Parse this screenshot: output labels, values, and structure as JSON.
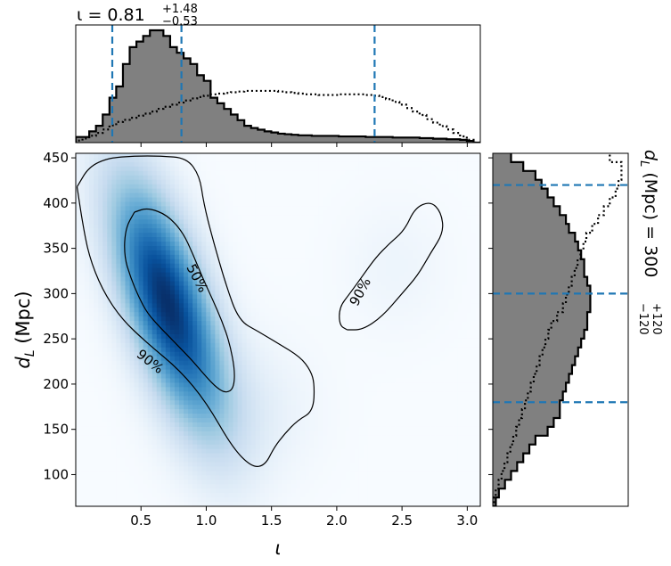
{
  "chart_data": {
    "type": "heatmap",
    "layout": "corner plot with marginal histograms",
    "title_top": {
      "base": "ι = 0.81",
      "sup": "+1.48",
      "sub": "−0.53"
    },
    "title_right": {
      "base": "d_L (Mpc) = 300",
      "sup": "+120",
      "sub": "−120"
    },
    "xlabel": "ι",
    "ylabel": "d_L (Mpc)",
    "xlim": [
      0.0,
      3.1
    ],
    "ylim": [
      65,
      455
    ],
    "xticks": [
      0.5,
      1.0,
      1.5,
      2.0,
      2.5,
      3.0
    ],
    "xtick_labels": [
      "0.5",
      "1.0",
      "1.5",
      "2.0",
      "2.5",
      "3.0"
    ],
    "yticks": [
      100,
      150,
      200,
      250,
      300,
      350,
      400,
      450
    ],
    "ytick_labels": [
      "100",
      "150",
      "200",
      "250",
      "300",
      "350",
      "400",
      "450"
    ],
    "colormap": "Blues",
    "density_peak": {
      "iota": 0.7,
      "dL": 290
    },
    "contours": [
      {
        "label": "50%",
        "label_pos": {
          "iota": 0.93,
          "dL": 317
        },
        "label_angle": 62,
        "path": [
          [
            0.45,
            390
          ],
          [
            0.38,
            372
          ],
          [
            0.37,
            342
          ],
          [
            0.42,
            318
          ],
          [
            0.48,
            297
          ],
          [
            0.55,
            278
          ],
          [
            0.65,
            262
          ],
          [
            0.78,
            243
          ],
          [
            0.9,
            225
          ],
          [
            1.0,
            208
          ],
          [
            1.08,
            196
          ],
          [
            1.15,
            190
          ],
          [
            1.21,
            195
          ],
          [
            1.22,
            215
          ],
          [
            1.18,
            245
          ],
          [
            1.12,
            270
          ],
          [
            1.05,
            293
          ],
          [
            0.97,
            318
          ],
          [
            0.9,
            343
          ],
          [
            0.82,
            368
          ],
          [
            0.7,
            387
          ],
          [
            0.55,
            395
          ],
          [
            0.45,
            390
          ]
        ]
      },
      {
        "label": "90%",
        "label_pos": {
          "iota": 0.57,
          "dL": 225
        },
        "label_angle": 38,
        "path": [
          [
            0.01,
            418
          ],
          [
            0.05,
            380
          ],
          [
            0.1,
            342
          ],
          [
            0.2,
            305
          ],
          [
            0.35,
            272
          ],
          [
            0.55,
            245
          ],
          [
            0.8,
            215
          ],
          [
            1.0,
            180
          ],
          [
            1.2,
            130
          ],
          [
            1.35,
            108
          ],
          [
            1.45,
            110
          ],
          [
            1.52,
            130
          ],
          [
            1.6,
            145
          ],
          [
            1.7,
            160
          ],
          [
            1.82,
            170
          ],
          [
            1.83,
            200
          ],
          [
            1.8,
            215
          ],
          [
            1.72,
            230
          ],
          [
            1.55,
            245
          ],
          [
            1.4,
            258
          ],
          [
            1.25,
            270
          ],
          [
            1.15,
            310
          ],
          [
            1.05,
            360
          ],
          [
            0.98,
            400
          ],
          [
            0.95,
            430
          ],
          [
            0.85,
            450
          ],
          [
            0.65,
            452
          ],
          [
            0.45,
            452
          ],
          [
            0.25,
            450
          ],
          [
            0.1,
            440
          ],
          [
            0.01,
            418
          ]
        ]
      },
      {
        "label": "90%",
        "label_pos": {
          "iota": 2.18,
          "dL": 302
        },
        "label_angle": -62,
        "path": [
          [
            2.08,
            260
          ],
          [
            2.2,
            260
          ],
          [
            2.35,
            275
          ],
          [
            2.5,
            300
          ],
          [
            2.62,
            320
          ],
          [
            2.72,
            345
          ],
          [
            2.82,
            368
          ],
          [
            2.8,
            390
          ],
          [
            2.72,
            402
          ],
          [
            2.6,
            395
          ],
          [
            2.52,
            370
          ],
          [
            2.4,
            355
          ],
          [
            2.3,
            340
          ],
          [
            2.2,
            320
          ],
          [
            2.1,
            300
          ],
          [
            2.02,
            285
          ],
          [
            2.02,
            265
          ],
          [
            2.08,
            260
          ]
        ]
      }
    ],
    "iota_hist": {
      "bins": 60,
      "range": [
        0.0,
        3.1
      ],
      "filled": [
        1,
        1,
        2,
        3,
        5,
        8,
        10,
        14,
        17,
        18,
        19,
        20,
        20,
        19,
        17,
        16,
        15,
        14,
        12,
        11,
        8,
        7,
        6,
        5,
        4,
        3,
        2.6,
        2.3,
        2.0,
        1.8,
        1.6,
        1.5,
        1.4,
        1.3,
        1.3,
        1.2,
        1.2,
        1.2,
        1.2,
        1.1,
        1.1,
        1.1,
        1.1,
        1.0,
        1.0,
        1.0,
        1.0,
        0.9,
        0.9,
        0.9,
        0.9,
        0.8,
        0.8,
        0.7,
        0.7,
        0.6,
        0.6,
        0.5,
        0.3,
        0.0
      ],
      "dotted": [
        0.3,
        0.6,
        1.0,
        1.4,
        1.9,
        2.5,
        3.0,
        3.3,
        3.6,
        3.9,
        4.2,
        4.5,
        4.9,
        5.2,
        5.5,
        5.8,
        6.1,
        6.4,
        6.6,
        6.8,
        7.0,
        7.1,
        7.2,
        7.3,
        7.4,
        7.5,
        7.5,
        7.5,
        7.5,
        7.5,
        7.4,
        7.3,
        7.2,
        7.1,
        7.0,
        7.0,
        6.9,
        6.9,
        6.9,
        7.0,
        7.0,
        7.0,
        7.0,
        6.9,
        6.8,
        6.6,
        6.3,
        5.9,
        5.5,
        5.0,
        4.5,
        4.0,
        3.4,
        2.9,
        2.4,
        1.9,
        1.4,
        0.9,
        0.4,
        0.0
      ],
      "quantile_lines": [
        0.28,
        0.81,
        2.29
      ]
    },
    "dL_hist": {
      "bins": 40,
      "range": [
        65,
        455
      ],
      "filled": [
        0.5,
        1,
        2,
        3,
        4,
        5,
        6,
        7,
        9,
        10,
        11,
        11,
        11.5,
        12,
        12.5,
        13,
        13.5,
        14,
        14.5,
        15,
        15.5,
        15.5,
        16,
        16,
        16,
        15.5,
        15,
        15,
        14.5,
        14,
        13.5,
        12.5,
        12,
        11,
        10,
        9,
        8,
        7,
        5,
        3
      ],
      "dotted": [
        0.2,
        0.5,
        1,
        1.5,
        2,
        2.5,
        3,
        3.5,
        4,
        4.5,
        5,
        5.5,
        6,
        6.5,
        7,
        7.5,
        8,
        8.5,
        9,
        9.5,
        10,
        11,
        12,
        12.5,
        13,
        13.5,
        14,
        14.5,
        15,
        15.5,
        16,
        17,
        18,
        19,
        20,
        21,
        21.5,
        22,
        22,
        20
      ],
      "quantile_lines": [
        180,
        300,
        420
      ]
    },
    "colors": {
      "fill": "#808080",
      "outline": "#000000",
      "quantile": "#1f77b4",
      "contour": "#000000"
    }
  }
}
